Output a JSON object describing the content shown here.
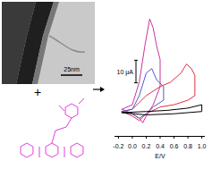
{
  "tem_image": {
    "scale_bar_label": "25nm"
  },
  "operator": "+",
  "chart_data": {
    "type": "line",
    "x_label": "E/V",
    "xlim": [
      -0.25,
      1.05
    ],
    "xticks": [
      -0.2,
      {
        "value": 0,
        "label": "0.0"
      },
      0.2,
      0.4,
      0.6,
      0.8,
      {
        "value": 1,
        "label": "1.0"
      }
    ],
    "ylim": [
      -10,
      45
    ],
    "tick_labels": "x",
    "scale_bar": {
      "value": 10,
      "label": "10 μA"
    },
    "series": [
      {
        "color": "#cc3399",
        "x": [
          -0.15,
          0.0,
          0.1,
          0.18,
          0.25,
          0.3,
          0.35,
          0.4,
          0.4,
          0.3,
          0.2,
          0.15,
          0.1,
          0.0,
          -0.15
        ],
        "values": [
          2,
          4,
          14,
          30,
          42,
          38,
          30,
          24,
          12,
          4,
          -1,
          -4,
          -2,
          0,
          2
        ]
      },
      {
        "color": "#e03040",
        "x": [
          -0.15,
          0.0,
          0.2,
          0.4,
          0.55,
          0.7,
          0.78,
          0.85,
          0.9,
          0.9,
          0.8,
          0.6,
          0.4,
          0.2,
          0.1,
          0.0,
          -0.15
        ],
        "values": [
          1,
          2,
          8,
          12,
          14,
          18,
          22,
          20,
          17,
          8,
          6,
          4,
          3,
          0,
          -3,
          -1,
          1
        ]
      },
      {
        "color": "#4a5bd4",
        "x": [
          -0.15,
          0.0,
          0.1,
          0.2,
          0.28,
          0.35,
          0.45,
          0.45,
          0.3,
          0.2,
          0.1,
          0.0,
          -0.15
        ],
        "values": [
          1,
          2,
          8,
          18,
          20,
          15,
          12,
          6,
          3,
          0,
          -2,
          0,
          1
        ]
      },
      {
        "color": "#000000",
        "x": [
          -0.15,
          0.2,
          0.5,
          0.8,
          1.0,
          1.0,
          0.6,
          0.2,
          -0.15
        ],
        "values": [
          0.5,
          1,
          1.5,
          2.5,
          4,
          1,
          0,
          -0.5,
          0.5
        ]
      }
    ]
  }
}
